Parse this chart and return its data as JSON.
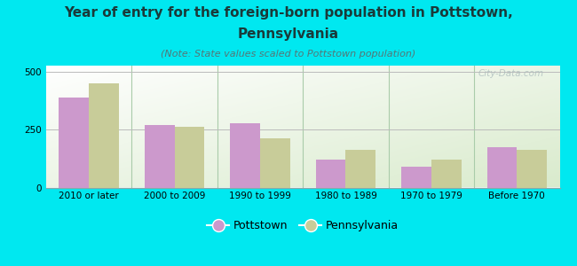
{
  "categories": [
    "2010 or later",
    "2000 to 2009",
    "1990 to 1999",
    "1980 to 1989",
    "1970 to 1979",
    "Before 1970"
  ],
  "pottstown_values": [
    390,
    270,
    280,
    120,
    90,
    175
  ],
  "pennsylvania_values": [
    450,
    265,
    215,
    165,
    120,
    165
  ],
  "pottstown_color": "#cc99cc",
  "pennsylvania_color": "#c8cc99",
  "title_line1": "Year of entry for the foreign-born population in Pottstown,",
  "title_line2": "Pennsylvania",
  "subtitle": "(Note: State values scaled to Pottstown population)",
  "legend_pottstown": "Pottstown",
  "legend_pennsylvania": "Pennsylvania",
  "ylim": [
    0,
    530
  ],
  "yticks": [
    0,
    250,
    500
  ],
  "background_color": "#00e8f0",
  "plot_bg_top_left": "#f5f9f0",
  "plot_bg_bottom_right": "#d8e8c8",
  "watermark": "City-Data.com",
  "bar_width": 0.35,
  "title_fontsize": 11,
  "subtitle_fontsize": 8,
  "tick_fontsize": 7.5,
  "legend_fontsize": 9
}
